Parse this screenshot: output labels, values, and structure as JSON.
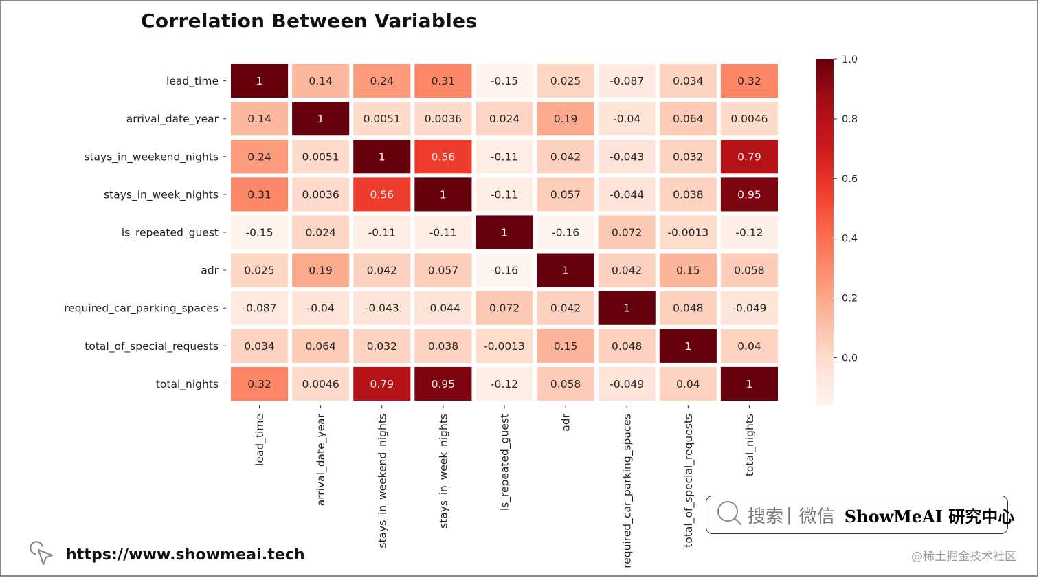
{
  "chart_data": {
    "type": "heatmap",
    "title": "Correlation Between Variables",
    "xlabel": "",
    "ylabel": "",
    "colormap": "Reds",
    "vmin": -0.16,
    "vmax": 1.0,
    "row_labels": [
      "lead_time",
      "arrival_date_year",
      "stays_in_weekend_nights",
      "stays_in_week_nights",
      "is_repeated_guest",
      "adr",
      "required_car_parking_spaces",
      "total_of_special_requests",
      "total_nights"
    ],
    "col_labels": [
      "lead_time",
      "arrival_date_year",
      "stays_in_weekend_nights",
      "stays_in_week_nights",
      "is_repeated_guest",
      "adr",
      "required_car_parking_spaces",
      "total_of_special_requests",
      "total_nights"
    ],
    "values": [
      [
        1,
        0.14,
        0.24,
        0.31,
        -0.15,
        0.025,
        -0.087,
        0.034,
        0.32
      ],
      [
        0.14,
        1,
        0.0051,
        0.0036,
        0.024,
        0.19,
        -0.04,
        0.064,
        0.0046
      ],
      [
        0.24,
        0.0051,
        1,
        0.56,
        -0.11,
        0.042,
        -0.043,
        0.032,
        0.79
      ],
      [
        0.31,
        0.0036,
        0.56,
        1,
        -0.11,
        0.057,
        -0.044,
        0.038,
        0.95
      ],
      [
        -0.15,
        0.024,
        -0.11,
        -0.11,
        1,
        -0.16,
        0.072,
        -0.0013,
        -0.12
      ],
      [
        0.025,
        0.19,
        0.042,
        0.057,
        -0.16,
        1,
        0.042,
        0.15,
        0.058
      ],
      [
        -0.087,
        -0.04,
        -0.043,
        -0.044,
        0.072,
        0.042,
        1,
        0.048,
        -0.049
      ],
      [
        0.034,
        0.064,
        0.032,
        0.038,
        -0.0013,
        0.15,
        0.048,
        1,
        0.04
      ],
      [
        0.32,
        0.0046,
        0.79,
        0.95,
        -0.12,
        0.058,
        -0.049,
        0.04,
        1
      ]
    ],
    "annotations": [
      [
        "1",
        "0.14",
        "0.24",
        "0.31",
        "-0.15",
        "0.025",
        "-0.087",
        "0.034",
        "0.32"
      ],
      [
        "0.14",
        "1",
        "0.0051",
        "0.0036",
        "0.024",
        "0.19",
        "-0.04",
        "0.064",
        "0.0046"
      ],
      [
        "0.24",
        "0.0051",
        "1",
        "0.56",
        "-0.11",
        "0.042",
        "-0.043",
        "0.032",
        "0.79"
      ],
      [
        "0.31",
        "0.0036",
        "0.56",
        "1",
        "-0.11",
        "0.057",
        "-0.044",
        "0.038",
        "0.95"
      ],
      [
        "-0.15",
        "0.024",
        "-0.11",
        "-0.11",
        "1",
        "-0.16",
        "0.072",
        "-0.0013",
        "-0.12"
      ],
      [
        "0.025",
        "0.19",
        "0.042",
        "0.057",
        "-0.16",
        "1",
        "0.042",
        "0.15",
        "0.058"
      ],
      [
        "-0.087",
        "-0.04",
        "-0.043",
        "-0.044",
        "0.072",
        "0.042",
        "1",
        "0.048",
        "-0.049"
      ],
      [
        "0.034",
        "0.064",
        "0.032",
        "0.038",
        "-0.0013",
        "0.15",
        "0.048",
        "1",
        "0.04"
      ],
      [
        "0.32",
        "0.0046",
        "0.79",
        "0.95",
        "-0.12",
        "0.058",
        "-0.049",
        "0.04",
        "1"
      ]
    ],
    "colorbar": {
      "ticks": [
        0.0,
        0.2,
        0.4,
        0.6,
        0.8,
        1.0
      ],
      "tick_labels": [
        "0.0",
        "0.2",
        "0.4",
        "0.6",
        "0.8",
        "1.0"
      ],
      "range": [
        -0.16,
        1.0
      ]
    },
    "grid": false,
    "legend": "colorbar-right"
  },
  "footer": {
    "url": "https://www.showmeai.tech",
    "search_hint": "搜索",
    "search_sep": "|",
    "search_hint2": "微信",
    "brand": "ShowMeAI 研究中心",
    "watermark": "@稀土掘金技术社区"
  },
  "icons": {
    "cursor": "cursor-click-icon",
    "search": "search-icon"
  }
}
